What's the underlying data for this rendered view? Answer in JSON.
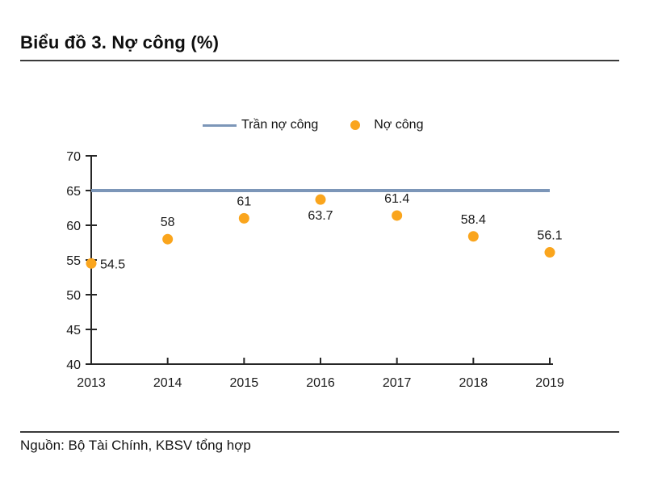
{
  "header": {
    "title": "Biểu đồ 3. Nợ công (%)"
  },
  "footer": {
    "source": "Nguồn: Bộ Tài Chính, KBSV tổng hợp"
  },
  "legend": {
    "items": [
      {
        "label": "Trần nợ công",
        "marker": "line"
      },
      {
        "label": "Nợ công",
        "marker": "dot"
      }
    ]
  },
  "colors": {
    "ceiling": "#7C96B8",
    "debt": "#FAA51D",
    "axis": "#262626",
    "text": "#1A1A1A",
    "rule": "#3A3A3A"
  },
  "chart_data": {
    "type": "scatter",
    "title": "Nợ công (%)",
    "categories": [
      "2013",
      "2014",
      "2015",
      "2016",
      "2017",
      "2018",
      "2019"
    ],
    "series": [
      {
        "name": "Nợ công",
        "type": "scatter",
        "values": [
          54.5,
          58,
          61,
          63.7,
          61.4,
          58.4,
          56.1
        ],
        "point_labels": [
          "54.5",
          "58",
          "61",
          "63.7",
          "61.4",
          "58.4",
          "56.1"
        ],
        "label_placement": [
          "right",
          "above",
          "above",
          "below",
          "above",
          "above",
          "above"
        ]
      },
      {
        "name": "Trần nợ công",
        "type": "hline",
        "value": 65
      }
    ],
    "ylim": [
      40,
      70
    ],
    "ytick_step": 5,
    "xlabel": "",
    "ylabel": "",
    "grid": false,
    "legend_position": "top-center"
  }
}
